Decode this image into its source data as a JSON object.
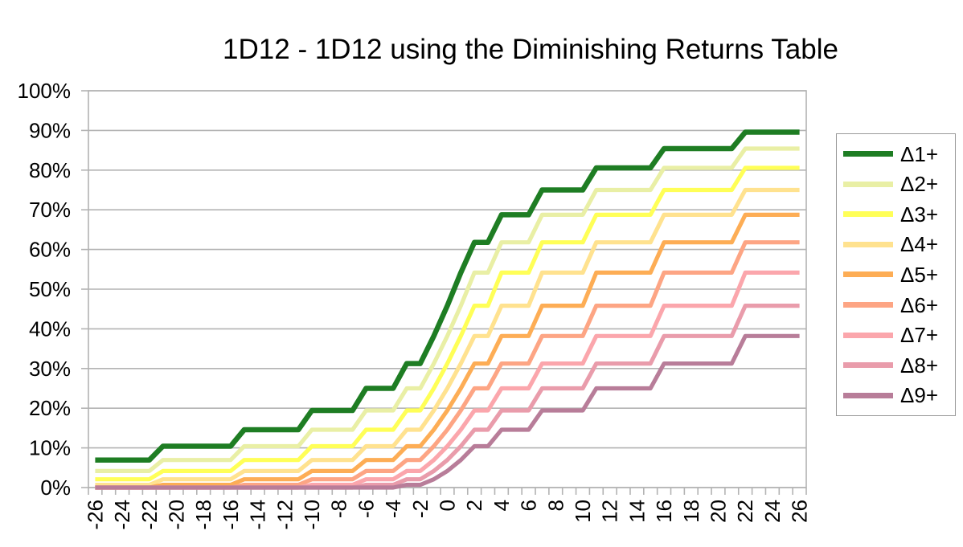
{
  "chart_data": {
    "type": "line",
    "title": "1D12 - 1D12 using the Diminishing Returns Table",
    "xlabel": "",
    "ylabel": "",
    "ylim": [
      0,
      100
    ],
    "grid": "horizontal",
    "legend_position": "right",
    "axis_color": "#b3b3b3",
    "text_color": "#000000",
    "x_label_every": 2,
    "y_tick_values": [
      0,
      10,
      20,
      30,
      40,
      50,
      60,
      70,
      80,
      90,
      100
    ],
    "y_tick_labels": [
      "0%",
      "10%",
      "20%",
      "30%",
      "40%",
      "50%",
      "60%",
      "70%",
      "80%",
      "90%",
      "100%"
    ],
    "x": [
      -26,
      -25,
      -24,
      -23,
      -22,
      -21,
      -20,
      -19,
      -18,
      -17,
      -16,
      -15,
      -14,
      -13,
      -12,
      -11,
      -10,
      -9,
      -8,
      -7,
      -6,
      -5,
      -4,
      -3,
      -2,
      -1,
      0,
      1,
      2,
      3,
      4,
      5,
      6,
      7,
      8,
      9,
      10,
      11,
      12,
      13,
      14,
      15,
      16,
      17,
      18,
      19,
      20,
      21,
      22,
      23,
      24,
      25,
      26
    ],
    "series": [
      {
        "name": "Δ1+",
        "color": "#1e7d23",
        "line_width": 6.5,
        "values": [
          6.94,
          6.94,
          6.94,
          6.94,
          6.94,
          10.42,
          10.42,
          10.42,
          10.42,
          10.42,
          10.42,
          14.58,
          14.58,
          14.58,
          14.58,
          14.58,
          19.44,
          19.44,
          19.44,
          19.44,
          25,
          25,
          25,
          31.25,
          31.25,
          38.19,
          45.83,
          54.17,
          61.81,
          61.81,
          68.75,
          68.75,
          68.75,
          75,
          75,
          75,
          75,
          80.56,
          80.56,
          80.56,
          80.56,
          80.56,
          85.42,
          85.42,
          85.42,
          85.42,
          85.42,
          85.42,
          89.58,
          89.58,
          89.58,
          89.58,
          89.58
        ]
      },
      {
        "name": "Δ2+",
        "color": "#e9efa5",
        "line_width": 5.2,
        "values": [
          4.17,
          4.17,
          4.17,
          4.17,
          4.17,
          6.94,
          6.94,
          6.94,
          6.94,
          6.94,
          6.94,
          10.42,
          10.42,
          10.42,
          10.42,
          10.42,
          14.58,
          14.58,
          14.58,
          14.58,
          19.44,
          19.44,
          19.44,
          25,
          25,
          31.25,
          38.19,
          45.83,
          54.17,
          54.17,
          61.81,
          61.81,
          61.81,
          68.75,
          68.75,
          68.75,
          68.75,
          75,
          75,
          75,
          75,
          75,
          80.56,
          80.56,
          80.56,
          80.56,
          80.56,
          80.56,
          85.42,
          85.42,
          85.42,
          85.42,
          85.42
        ]
      },
      {
        "name": "Δ3+",
        "color": "#ffff57",
        "line_width": 5.2,
        "values": [
          2.08,
          2.08,
          2.08,
          2.08,
          2.08,
          4.17,
          4.17,
          4.17,
          4.17,
          4.17,
          4.17,
          6.94,
          6.94,
          6.94,
          6.94,
          6.94,
          10.42,
          10.42,
          10.42,
          10.42,
          14.58,
          14.58,
          14.58,
          19.44,
          19.44,
          25,
          31.25,
          38.19,
          45.83,
          45.83,
          54.17,
          54.17,
          54.17,
          61.81,
          61.81,
          61.81,
          61.81,
          68.75,
          68.75,
          68.75,
          68.75,
          68.75,
          75,
          75,
          75,
          75,
          75,
          75,
          80.56,
          80.56,
          80.56,
          80.56,
          80.56
        ]
      },
      {
        "name": "Δ4+",
        "color": "#ffe28f",
        "line_width": 5.2,
        "values": [
          0.69,
          0.69,
          0.69,
          0.69,
          0.69,
          2.08,
          2.08,
          2.08,
          2.08,
          2.08,
          2.08,
          4.17,
          4.17,
          4.17,
          4.17,
          4.17,
          6.94,
          6.94,
          6.94,
          6.94,
          10.42,
          10.42,
          10.42,
          14.58,
          14.58,
          19.44,
          25,
          31.25,
          38.19,
          38.19,
          45.83,
          45.83,
          45.83,
          54.17,
          54.17,
          54.17,
          54.17,
          61.81,
          61.81,
          61.81,
          61.81,
          61.81,
          68.75,
          68.75,
          68.75,
          68.75,
          68.75,
          68.75,
          75,
          75,
          75,
          75,
          75
        ]
      },
      {
        "name": "Δ5+",
        "color": "#fdad55",
        "line_width": 5.2,
        "values": [
          0,
          0,
          0,
          0,
          0,
          0.69,
          0.69,
          0.69,
          0.69,
          0.69,
          0.69,
          2.08,
          2.08,
          2.08,
          2.08,
          2.08,
          4.17,
          4.17,
          4.17,
          4.17,
          6.94,
          6.94,
          6.94,
          10.42,
          10.42,
          14.58,
          19.44,
          25,
          31.25,
          31.25,
          38.19,
          38.19,
          38.19,
          45.83,
          45.83,
          45.83,
          45.83,
          54.17,
          54.17,
          54.17,
          54.17,
          54.17,
          61.81,
          61.81,
          61.81,
          61.81,
          61.81,
          61.81,
          68.75,
          68.75,
          68.75,
          68.75,
          68.75
        ]
      },
      {
        "name": "Δ6+",
        "color": "#fda584",
        "line_width": 5.2,
        "values": [
          0,
          0,
          0,
          0,
          0,
          0,
          0,
          0,
          0,
          0,
          0,
          0.69,
          0.69,
          0.69,
          0.69,
          0.69,
          2.08,
          2.08,
          2.08,
          2.08,
          4.17,
          4.17,
          4.17,
          6.94,
          6.94,
          10.42,
          14.58,
          19.44,
          25,
          25,
          31.25,
          31.25,
          31.25,
          38.19,
          38.19,
          38.19,
          38.19,
          45.83,
          45.83,
          45.83,
          45.83,
          45.83,
          54.17,
          54.17,
          54.17,
          54.17,
          54.17,
          54.17,
          61.81,
          61.81,
          61.81,
          61.81,
          61.81
        ]
      },
      {
        "name": "Δ7+",
        "color": "#fba6ac",
        "line_width": 5.2,
        "values": [
          0,
          0,
          0,
          0,
          0,
          0,
          0,
          0,
          0,
          0,
          0,
          0,
          0,
          0,
          0,
          0,
          0.69,
          0.69,
          0.69,
          0.69,
          2.08,
          2.08,
          2.08,
          4.17,
          4.17,
          6.94,
          10.42,
          14.58,
          19.44,
          19.44,
          25,
          25,
          25,
          31.25,
          31.25,
          31.25,
          31.25,
          38.19,
          38.19,
          38.19,
          38.19,
          38.19,
          45.83,
          45.83,
          45.83,
          45.83,
          45.83,
          45.83,
          54.17,
          54.17,
          54.17,
          54.17,
          54.17
        ]
      },
      {
        "name": "Δ8+",
        "color": "#e99cab",
        "line_width": 5.2,
        "values": [
          0,
          0,
          0,
          0,
          0,
          0,
          0,
          0,
          0,
          0,
          0,
          0,
          0,
          0,
          0,
          0,
          0,
          0,
          0,
          0,
          0.69,
          0.69,
          0.69,
          2.08,
          2.08,
          4.17,
          6.94,
          10.42,
          14.58,
          14.58,
          19.44,
          19.44,
          19.44,
          25,
          25,
          25,
          25,
          31.25,
          31.25,
          31.25,
          31.25,
          31.25,
          38.19,
          38.19,
          38.19,
          38.19,
          38.19,
          38.19,
          45.83,
          45.83,
          45.83,
          45.83,
          45.83
        ]
      },
      {
        "name": "Δ9+",
        "color": "#b87d99",
        "line_width": 5.2,
        "values": [
          0,
          0,
          0,
          0,
          0,
          0,
          0,
          0,
          0,
          0,
          0,
          0,
          0,
          0,
          0,
          0,
          0,
          0,
          0,
          0,
          0,
          0,
          0,
          0.69,
          0.69,
          2.08,
          4.17,
          6.94,
          10.42,
          10.42,
          14.58,
          14.58,
          14.58,
          19.44,
          19.44,
          19.44,
          19.44,
          25,
          25,
          25,
          25,
          25,
          31.25,
          31.25,
          31.25,
          31.25,
          31.25,
          31.25,
          38.19,
          38.19,
          38.19,
          38.19,
          38.19
        ]
      }
    ]
  }
}
